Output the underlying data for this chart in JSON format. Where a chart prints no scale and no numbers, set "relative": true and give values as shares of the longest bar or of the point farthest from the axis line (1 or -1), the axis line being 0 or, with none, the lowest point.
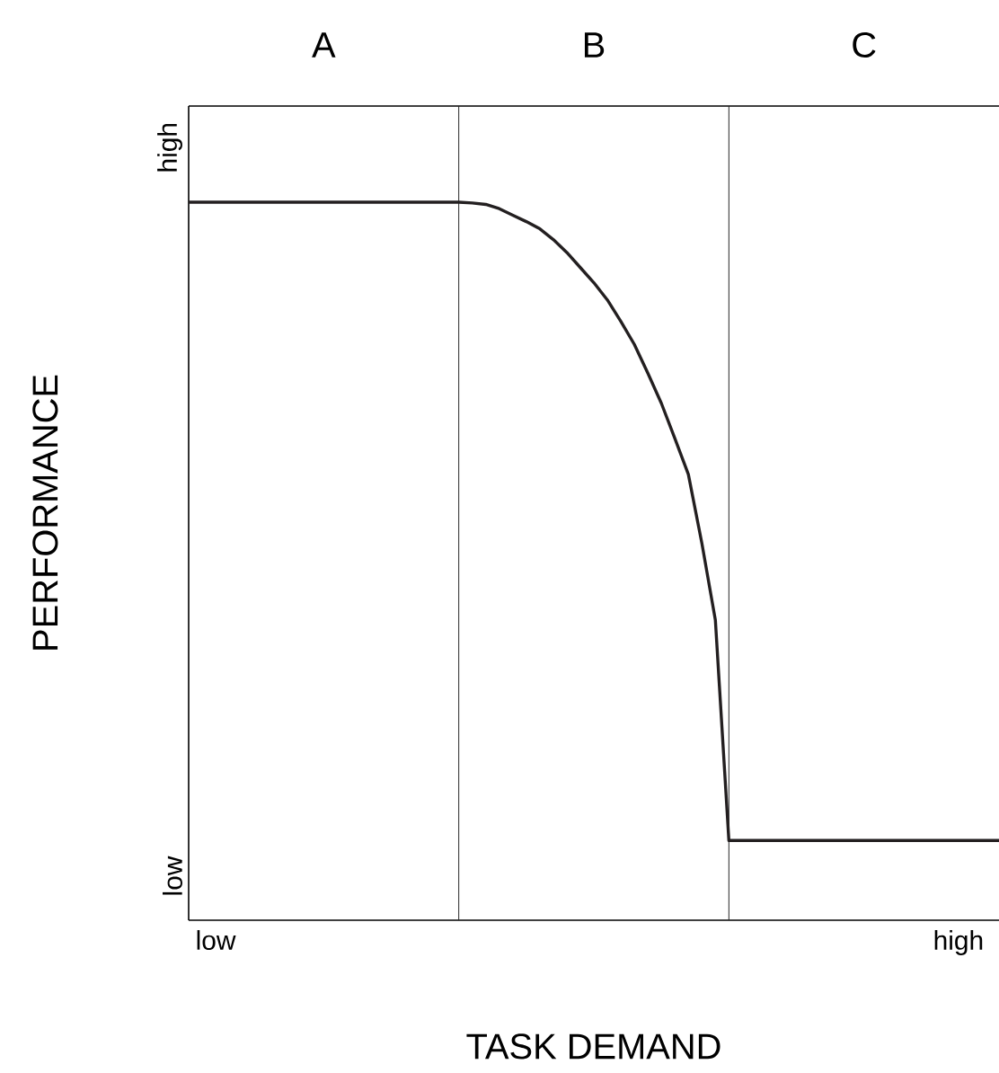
{
  "chart_data": {
    "type": "line",
    "xlabel": "TASK DEMAND",
    "ylabel": "PERFORMANCE",
    "relative": true,
    "annotations": [
      "A",
      "B",
      "C",
      "low",
      "high"
    ],
    "categories": [
      null,
      null,
      "low",
      null,
      null,
      null,
      null,
      null,
      null,
      null,
      null,
      null,
      null,
      null,
      null,
      null,
      null,
      null,
      null,
      null,
      null,
      null,
      null,
      null,
      null,
      null,
      null,
      null,
      null,
      null,
      null,
      null,
      null,
      null,
      null,
      null,
      null,
      null,
      null,
      null,
      null,
      null,
      null,
      null,
      null,
      null,
      null,
      null,
      null,
      null,
      null,
      null,
      null,
      null,
      null,
      null,
      null,
      "high",
      null,
      null,
      null
    ],
    "series": [
      {
        "color": "#231f20",
        "values": [
          1,
          1,
          1,
          1,
          1,
          1,
          1,
          1,
          1,
          1,
          1,
          1,
          1,
          1,
          1,
          1,
          1,
          1,
          1,
          1,
          1,
          0.999,
          0.997,
          0.991,
          0.982,
          0.973,
          0.963,
          0.948,
          0.93,
          0.909,
          0.888,
          0.864,
          0.834,
          0.802,
          0.762,
          0.72,
          0.671,
          0.621,
          0.525,
          0.418,
          0.111,
          0.111,
          0.111,
          0.111,
          0.111,
          0.111,
          0.111,
          0.111,
          0.111,
          0.111,
          0.111,
          0.111,
          0.111,
          0.111,
          0.111,
          0.111,
          0.111,
          0.111,
          0.111,
          0.111,
          0.111
        ]
      }
    ]
  }
}
